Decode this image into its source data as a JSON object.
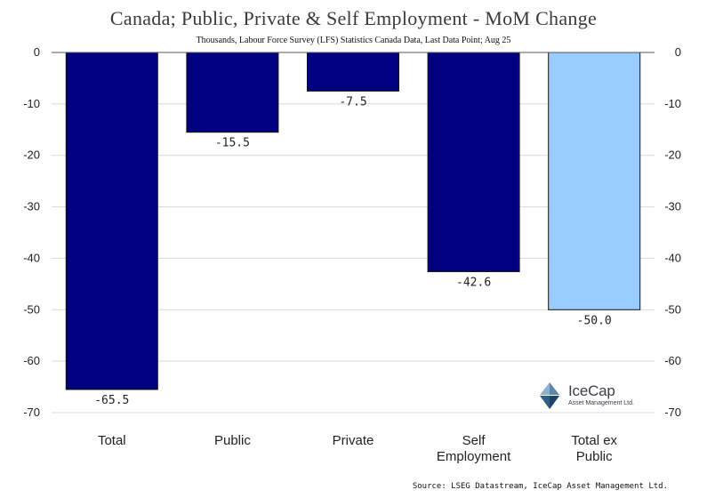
{
  "chart_data": {
    "type": "bar",
    "title": "Canada; Public, Private & Self Employment - MoM Change",
    "subtitle": "Thousands, Labour Force Survey (LFS) Statistics Canada Data, Last Data Point; Aug 25",
    "categories": [
      "Total",
      "Public",
      "Private",
      "Self Employment",
      "Total ex Public"
    ],
    "category_lines": [
      [
        "Total"
      ],
      [
        "Public"
      ],
      [
        "Private"
      ],
      [
        "Self",
        "Employment"
      ],
      [
        "Total ex",
        "Public"
      ]
    ],
    "values": [
      -65.5,
      -15.5,
      -7.5,
      -42.6,
      -50.0
    ],
    "value_labels": [
      "-65.5",
      "-15.5",
      "-7.5",
      "-42.6",
      "-50.0"
    ],
    "bar_colors": [
      "#000080",
      "#000080",
      "#000080",
      "#000080",
      "#99ccff"
    ],
    "ylim": [
      -70,
      0
    ],
    "yticks": [
      0,
      -10,
      -20,
      -30,
      -40,
      -50,
      -60,
      -70
    ],
    "ytick_labels": [
      "0",
      "-10",
      "-20",
      "-30",
      "-40",
      "-50",
      "-60",
      "-70"
    ],
    "grid": true,
    "xlabel": "",
    "ylabel": ""
  },
  "source": "Source: LSEG Datastream, IceCap Asset Management Ltd.",
  "logo": {
    "name": "IceCap",
    "tagline": "Asset Management Ltd."
  }
}
